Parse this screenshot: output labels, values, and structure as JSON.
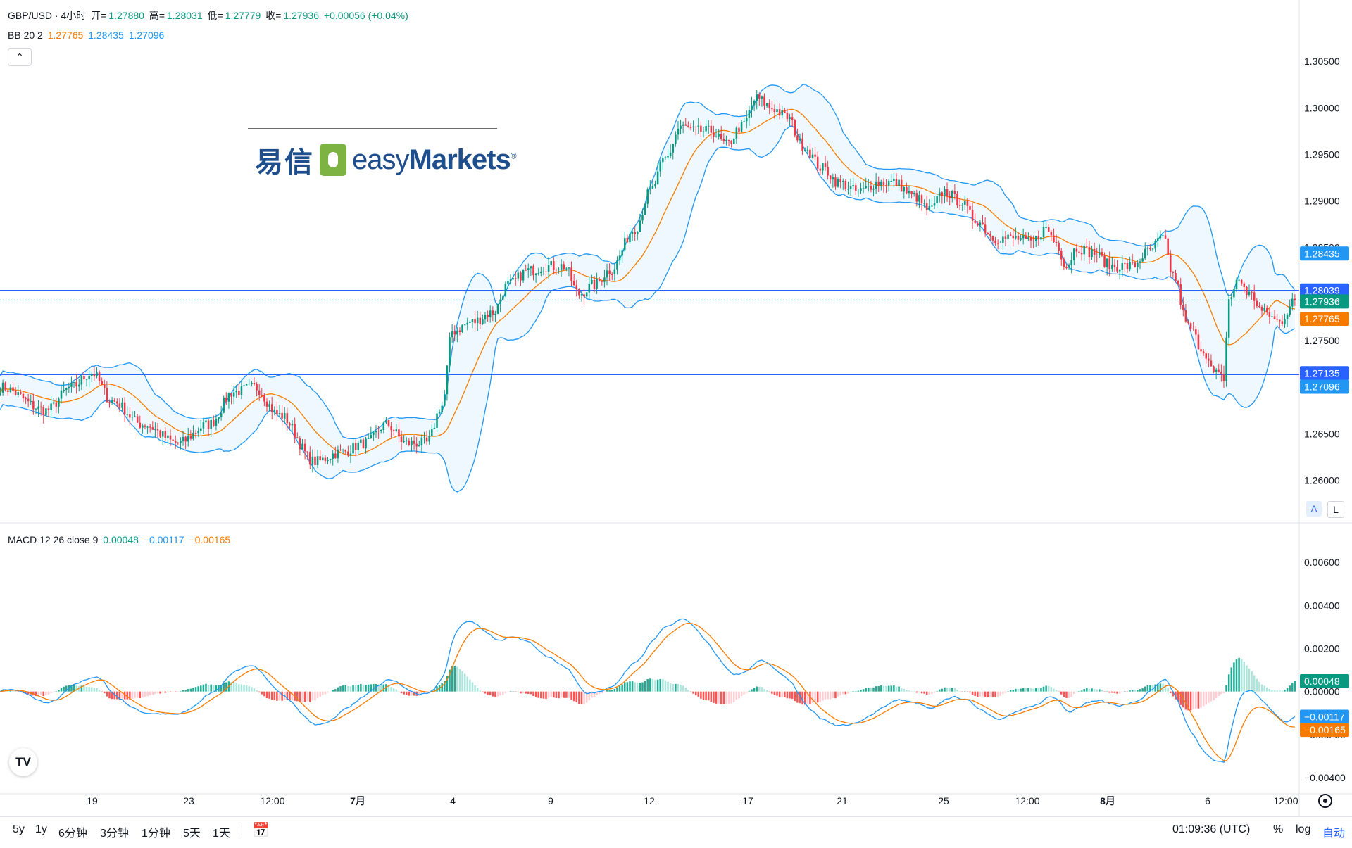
{
  "header": {
    "symbol": "GBP/USD · 4小时",
    "open_label": "开=",
    "open": "1.27880",
    "high_label": "高=",
    "high": "1.28031",
    "low_label": "低=",
    "low": "1.27779",
    "close_label": "收=",
    "close": "1.27936",
    "change": "+0.00056 (+0.04%)",
    "bb_title": "BB 20 2",
    "bb_mid": "1.27765",
    "bb_upper": "1.28435",
    "bb_lower": "1.27096",
    "macd_title": "MACD 12 26 close 9",
    "macd_hist": "0.00048",
    "macd_line": "−0.00117",
    "macd_signal": "−0.00165",
    "collapse_icon": "chevron-up-icon"
  },
  "watermark": {
    "cn": "易信",
    "en_a": "easy",
    "en_b": "Markets",
    "reg": "®"
  },
  "axis_buttons": {
    "auto": "A",
    "log": "L"
  },
  "colors": {
    "up": "#089981",
    "down": "#f23645",
    "up_hist": "#22ab94",
    "up_hist_light": "#ace5dc",
    "down_hist": "#ff5252",
    "down_hist_light": "#ffcdd2",
    "bb_upper_lower": "#2196f3",
    "bb_mid": "#f57c00",
    "macd": "#2196f3",
    "signal": "#f57c00",
    "hline": "#2962ff",
    "last": "#089981"
  },
  "bottom_bar": {
    "ranges": [
      "5y",
      "1y",
      "6分钟",
      "3分钟",
      "1分钟",
      "5天",
      "1天"
    ],
    "calendar_icon": "calendar-icon",
    "clock": "01:09:36 (UTC)",
    "percent": "%",
    "log": "log",
    "auto": "自动",
    "settings_icon": "gear-icon"
  },
  "chart_data": [
    {
      "type": "candlestick",
      "title": "GBP/USD · 4小时",
      "ylim": [
        1.2555,
        1.3072
      ],
      "y_ticks": [
        "1.26000",
        "1.26500",
        "1.27000",
        "1.27500",
        "1.28000",
        "1.28500",
        "1.29000",
        "1.29500",
        "1.30000",
        "1.30500"
      ],
      "x_ticks": [
        "19",
        "23",
        "12:00",
        "7月",
        "4",
        "9",
        "12",
        "17",
        "21",
        "25",
        "12:00",
        "8月",
        "6",
        "12:00"
      ],
      "bollinger": {
        "period": 20,
        "mult": 2,
        "upper": 1.28435,
        "middle": 1.27765,
        "lower": 1.27096
      },
      "horizontal_lines": [
        1.28039,
        1.27135
      ],
      "last_close": 1.27936,
      "price_labels": [
        "1.28435",
        "1.28039",
        "1.27936",
        "1.27765",
        "1.27135",
        "1.27096"
      ],
      "anchors": [
        [
          0,
          1.27
        ],
        [
          18,
          1.2675
        ],
        [
          28,
          1.27
        ],
        [
          36,
          1.2715
        ],
        [
          44,
          1.2685
        ],
        [
          56,
          1.266
        ],
        [
          70,
          1.264
        ],
        [
          82,
          1.266
        ],
        [
          92,
          1.2695
        ],
        [
          100,
          1.27
        ],
        [
          110,
          1.267
        ],
        [
          124,
          1.262
        ],
        [
          134,
          1.263
        ],
        [
          144,
          1.264
        ],
        [
          152,
          1.266
        ],
        [
          160,
          1.264
        ],
        [
          168,
          1.264
        ],
        [
          174,
          1.268
        ],
        [
          178,
          1.276
        ],
        [
          186,
          1.277
        ],
        [
          194,
          1.278
        ],
        [
          200,
          1.281
        ],
        [
          208,
          1.2825
        ],
        [
          216,
          1.283
        ],
        [
          222,
          1.283
        ],
        [
          228,
          1.28
        ],
        [
          234,
          1.281
        ],
        [
          240,
          1.2825
        ],
        [
          250,
          1.287
        ],
        [
          256,
          1.291
        ],
        [
          262,
          1.2945
        ],
        [
          268,
          1.298
        ],
        [
          274,
          1.2975
        ],
        [
          280,
          1.2975
        ],
        [
          286,
          1.296
        ],
        [
          292,
          1.298
        ],
        [
          298,
          1.301
        ],
        [
          304,
          1.3
        ],
        [
          310,
          1.299
        ],
        [
          316,
          1.296
        ],
        [
          324,
          1.2935
        ],
        [
          330,
          1.292
        ],
        [
          338,
          1.291
        ],
        [
          346,
          1.292
        ],
        [
          352,
          1.292
        ],
        [
          360,
          1.2905
        ],
        [
          366,
          1.289
        ],
        [
          372,
          1.291
        ],
        [
          378,
          1.29
        ],
        [
          384,
          1.288
        ],
        [
          392,
          1.286
        ],
        [
          400,
          1.286
        ],
        [
          406,
          1.2855
        ],
        [
          412,
          1.287
        ],
        [
          416,
          1.2855
        ],
        [
          420,
          1.283
        ],
        [
          424,
          1.285
        ],
        [
          430,
          1.2845
        ],
        [
          438,
          1.283
        ],
        [
          446,
          1.283
        ],
        [
          452,
          1.2845
        ],
        [
          458,
          1.286
        ],
        [
          462,
          1.282
        ],
        [
          468,
          1.2765
        ],
        [
          474,
          1.274
        ],
        [
          478,
          1.2715
        ],
        [
          482,
          1.271
        ],
        [
          484,
          1.2795
        ],
        [
          488,
          1.2815
        ],
        [
          492,
          1.28
        ],
        [
          498,
          1.278
        ],
        [
          504,
          1.277
        ],
        [
          510,
          1.2795
        ]
      ],
      "total_bars": 511
    },
    {
      "type": "macd",
      "title": "MACD 12 26 close 9",
      "ylim": [
        -0.00475,
        0.0078
      ],
      "y_ticks": [
        "−0.00400",
        "−0.00200",
        "0.00000",
        "0.00200",
        "0.00400",
        "0.00600"
      ],
      "macd_value": -0.00117,
      "signal_value": -0.00165,
      "hist_value": 0.00048,
      "price_labels": [
        "0.00048",
        "−0.00117",
        "−0.00165"
      ]
    }
  ]
}
